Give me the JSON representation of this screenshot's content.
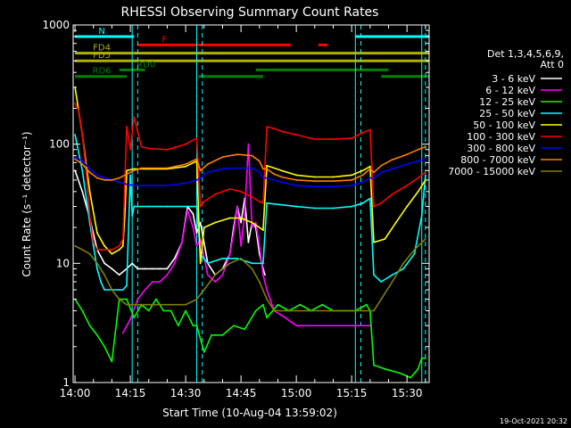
{
  "chart_data": {
    "type": "line",
    "title": "RHESSI Observing Summary Count Rates",
    "xlabel": "Start Time (10-Aug-04 13:59:02)",
    "ylabel": "Count Rate (s⁻¹ detector⁻¹)",
    "x_unit": "minutes after 14:00 UT",
    "xlim": [
      -0.5,
      96
    ],
    "ylim": [
      1,
      1000
    ],
    "yscale": "log",
    "grid": false,
    "x_ticks": [
      {
        "x": 0,
        "label": "14:00"
      },
      {
        "x": 15,
        "label": "14:15"
      },
      {
        "x": 30,
        "label": "14:30"
      },
      {
        "x": 45,
        "label": "14:45"
      },
      {
        "x": 60,
        "label": "15:00"
      },
      {
        "x": 75,
        "label": "15:15"
      },
      {
        "x": 90,
        "label": "15:30"
      }
    ],
    "y_ticks": [
      {
        "y": 1,
        "label": "1"
      },
      {
        "y": 10,
        "label": "10"
      },
      {
        "y": 100,
        "label": "100"
      },
      {
        "y": 1000,
        "label": "1000"
      }
    ],
    "footer_timestamp": "19-Oct-2021 20:32",
    "legend": {
      "placement": "right",
      "header_lines": [
        "Det 1,3,4,5,6,9,",
        "Att 0"
      ]
    },
    "series": [
      {
        "name": "3 - 6 keV",
        "color": "#ffffff",
        "x": [
          0,
          2,
          4,
          6,
          8,
          10,
          12,
          14,
          15.5,
          17,
          19,
          21,
          23,
          25,
          27,
          29,
          30.5,
          32,
          33,
          34,
          36,
          38,
          40,
          42,
          43,
          44,
          45,
          46,
          47,
          48,
          49,
          50,
          51,
          51.5
        ],
        "y": [
          60,
          40,
          24,
          13,
          10,
          9,
          8,
          9,
          10,
          9,
          9,
          9,
          9,
          9,
          11,
          15,
          30,
          26,
          18,
          22,
          10,
          8,
          9,
          12,
          20,
          30,
          22,
          35,
          15,
          22,
          20,
          12,
          9,
          8
        ]
      },
      {
        "name": "6 - 12 keV",
        "color": "#ff00ff",
        "x": [
          13,
          15,
          17,
          19,
          21,
          23,
          25,
          27,
          29,
          30.5,
          32,
          33,
          34,
          36,
          38,
          40,
          42,
          43,
          44,
          45,
          46,
          47,
          48,
          49,
          50,
          51,
          52,
          54,
          57,
          60,
          63,
          66,
          69,
          72,
          75,
          78,
          80
        ],
        "y": [
          2.6,
          3.4,
          5,
          6,
          7,
          7,
          8,
          10,
          15,
          28,
          20,
          14,
          16,
          8,
          7,
          8,
          12,
          18,
          30,
          14,
          26,
          100,
          20,
          22,
          14,
          8,
          6,
          4,
          3.5,
          3,
          3,
          3,
          3,
          3,
          3,
          3,
          3
        ]
      },
      {
        "name": "12 - 25 keV",
        "color": "#00ff00",
        "x": [
          0,
          2,
          4,
          6,
          8,
          10,
          12,
          14,
          16,
          18,
          20,
          22,
          24,
          26,
          28,
          30,
          32,
          33,
          35,
          37,
          40,
          43,
          46,
          49,
          51,
          52,
          55,
          58,
          61,
          64,
          67,
          70,
          73,
          76,
          79,
          80,
          81,
          84,
          88,
          91,
          93,
          94,
          95
        ],
        "y": [
          5,
          4,
          3,
          2.5,
          2,
          1.5,
          5,
          5,
          3.5,
          4.5,
          4,
          5,
          4,
          4,
          3,
          4,
          3,
          3,
          1.8,
          2.5,
          2.5,
          3,
          2.8,
          4,
          4.5,
          3.5,
          4.5,
          4,
          4.5,
          4,
          4.5,
          4,
          4,
          4,
          4.5,
          4,
          1.4,
          1.3,
          1.2,
          1.1,
          1.3,
          1.6,
          1.6
        ]
      },
      {
        "name": "25 - 50 keV",
        "color": "#00ffff",
        "x": [
          0,
          2,
          4,
          5,
          6,
          7,
          8,
          10,
          12,
          13,
          14,
          15,
          15.5,
          16,
          20,
          25,
          30,
          33,
          34,
          36,
          40,
          44,
          48,
          51,
          52,
          56,
          60,
          65,
          70,
          75,
          78,
          80,
          81,
          83,
          86,
          89,
          92,
          94,
          95
        ],
        "y": [
          120,
          60,
          22,
          14,
          9,
          7,
          6,
          6,
          6,
          6,
          6.5,
          55,
          25,
          30,
          30,
          30,
          30,
          30,
          12,
          10,
          11,
          11,
          10,
          10,
          32,
          31,
          30,
          29,
          29,
          30,
          32,
          35,
          8,
          7,
          8,
          9,
          12,
          25,
          55
        ]
      },
      {
        "name": "50 - 100 keV",
        "color": "#ffff00",
        "x": [
          0,
          2,
          4,
          6,
          8,
          10,
          12,
          13,
          13.5,
          14,
          16,
          20,
          25,
          30,
          33,
          34,
          35,
          38,
          42,
          45,
          48,
          50,
          51,
          52,
          56,
          60,
          65,
          70,
          75,
          78,
          80,
          81,
          84,
          87,
          90,
          93,
          95
        ],
        "y": [
          300,
          120,
          40,
          18,
          14,
          12,
          13,
          14,
          25,
          60,
          62,
          62,
          62,
          65,
          72,
          10,
          20,
          22,
          24,
          24,
          22,
          20,
          19,
          66,
          60,
          55,
          53,
          53,
          55,
          60,
          65,
          15,
          16,
          22,
          30,
          40,
          50
        ]
      },
      {
        "name": "100 - 300 keV",
        "color": "#ff0000",
        "x": [
          0,
          1,
          2,
          3,
          4,
          5,
          6,
          7,
          8,
          10,
          12,
          13,
          14,
          15,
          16,
          18,
          20,
          25,
          30,
          33,
          34,
          35,
          38,
          42,
          45,
          48,
          50,
          51,
          52,
          54,
          56,
          60,
          65,
          70,
          75,
          78,
          80,
          81,
          83,
          86,
          90,
          93,
          95
        ],
        "y": [
          220,
          190,
          120,
          60,
          25,
          15,
          13,
          13,
          13,
          13,
          14,
          16,
          140,
          90,
          170,
          95,
          92,
          90,
          100,
          112,
          30,
          33,
          38,
          42,
          40,
          36,
          33,
          32,
          140,
          135,
          128,
          120,
          110,
          110,
          112,
          125,
          132,
          30,
          32,
          38,
          45,
          52,
          58
        ]
      },
      {
        "name": "300 - 800 keV",
        "color": "#0000ff",
        "x": [
          0,
          2,
          4,
          6,
          8,
          10,
          12,
          14,
          16,
          18,
          20,
          25,
          30,
          33,
          34,
          36,
          40,
          44,
          48,
          50,
          51,
          52,
          54,
          56,
          60,
          65,
          70,
          75,
          78,
          80,
          81,
          83,
          86,
          90,
          93,
          95
        ],
        "y": [
          78,
          72,
          62,
          55,
          52,
          50,
          48,
          46,
          45,
          45,
          45,
          45,
          47,
          50,
          52,
          58,
          62,
          63,
          63,
          58,
          52,
          52,
          50,
          48,
          45,
          44,
          44,
          45,
          48,
          52,
          52,
          58,
          62,
          68,
          72,
          75
        ]
      },
      {
        "name": "800 - 7000 keV",
        "color": "#ff8000",
        "x": [
          0,
          2,
          4,
          6,
          8,
          10,
          12,
          14,
          16,
          18,
          20,
          25,
          30,
          33,
          34,
          36,
          40,
          44,
          48,
          50,
          51,
          52,
          54,
          56,
          60,
          65,
          70,
          75,
          78,
          80,
          81,
          83,
          86,
          90,
          93,
          95
        ],
        "y": [
          75,
          68,
          58,
          52,
          50,
          50,
          52,
          56,
          60,
          63,
          63,
          63,
          68,
          75,
          60,
          68,
          78,
          82,
          80,
          72,
          62,
          62,
          56,
          53,
          50,
          49,
          49,
          50,
          55,
          62,
          58,
          66,
          74,
          82,
          90,
          95
        ]
      },
      {
        "name": "7000 - 15000 keV",
        "color": "#808000",
        "x": [
          0,
          2,
          4,
          6,
          8,
          10,
          12,
          14,
          16,
          18,
          20,
          25,
          30,
          33,
          35,
          38,
          42,
          45,
          48,
          50,
          52,
          54,
          57,
          60,
          63,
          66,
          69,
          72,
          75,
          78,
          80,
          81,
          83,
          86,
          89,
          92,
          95
        ],
        "y": [
          14,
          13,
          12,
          10,
          8,
          6,
          5,
          4.5,
          4.5,
          4.5,
          4.5,
          4.5,
          4.5,
          5,
          6,
          8,
          10,
          11,
          9,
          7,
          5,
          4,
          4,
          4,
          4,
          4,
          4,
          4,
          4,
          4,
          4,
          4,
          5,
          7,
          10,
          13,
          16
        ]
      }
    ],
    "annotations": {
      "bars": [
        {
          "label": "N",
          "color": "#00ffff",
          "row_y": 800,
          "segments": [
            [
              0,
              16
            ],
            [
              76,
              96
            ]
          ]
        },
        {
          "label": "F",
          "color": "#ff0000",
          "row_y": 680,
          "segments": [
            [
              17,
              58.5
            ],
            [
              66,
              68.5
            ]
          ]
        },
        {
          "label": "FD4",
          "color": "#b0b000",
          "row_y": 580,
          "segments": [
            [
              0,
              96
            ]
          ]
        },
        {
          "label": "FD5",
          "color": "#b0b000",
          "row_y": 500,
          "segments": [
            [
              0,
              96
            ]
          ]
        },
        {
          "label": "RD0",
          "color": "#008000",
          "row_y": 420,
          "segments": [
            [
              12,
              19
            ],
            [
              49,
              85
            ]
          ]
        },
        {
          "label": "RD6",
          "color": "#008000",
          "row_y": 370,
          "segments": [
            [
              0,
              14
            ],
            [
              33.5,
              51
            ],
            [
              83,
              96
            ]
          ]
        }
      ],
      "vertical_solid_lines": [
        15.5,
        33,
        76,
        94
      ],
      "vertical_dashed_lines": [
        17,
        34.5,
        77.5,
        95
      ]
    }
  }
}
